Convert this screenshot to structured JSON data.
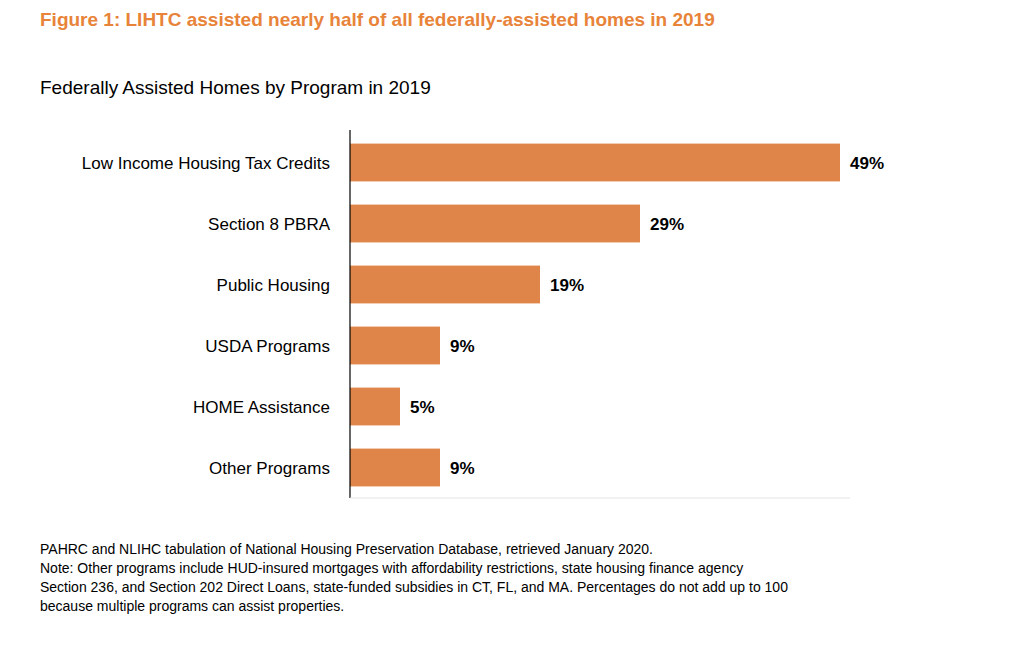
{
  "chart_data": {
    "type": "bar",
    "orientation": "horizontal",
    "title": "Figure 1: LIHTC assisted nearly half of all federally-assisted homes in 2019",
    "subtitle": "Federally Assisted Homes by Program in 2019",
    "categories": [
      "Low Income Housing Tax Credits",
      "Section 8 PBRA",
      "Public Housing",
      "USDA Programs",
      "HOME Assistance",
      "Other Programs"
    ],
    "values": [
      49,
      29,
      19,
      9,
      5,
      9
    ],
    "value_labels": [
      "49%",
      "29%",
      "19%",
      "9%",
      "5%",
      "9%"
    ],
    "color": "#e0854a",
    "xlim": [
      0,
      50
    ],
    "data_labels": true,
    "source": "PAHRC and NLIHC tabulation of National Housing Preservation Database, retrieved January 2020.",
    "note": [
      "Note: Other programs include HUD-insured mortgages with affordability restrictions, state housing finance agency",
      "Section 236, and Section 202 Direct Loans, state-funded subsidies in CT, FL, and MA. Percentages do not add up to 100",
      "because multiple programs can assist properties."
    ]
  }
}
